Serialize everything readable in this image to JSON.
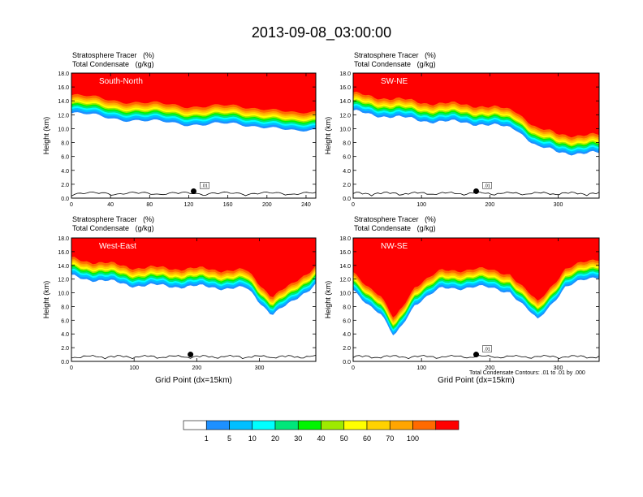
{
  "figure": {
    "title": "2013-09-08_03:00:00",
    "contour_note": "Total Condensate Contours: .01 to .01 by .000"
  },
  "colorbar": {
    "labels": [
      "1",
      "5",
      "10",
      "20",
      "30",
      "40",
      "50",
      "60",
      "70",
      "100"
    ],
    "colors": [
      "#ffffff",
      "#1e90ff",
      "#00bfff",
      "#00ffff",
      "#00e67a",
      "#00f500",
      "#9eea00",
      "#ffff00",
      "#ffd200",
      "#ffa500",
      "#ff6a00",
      "#ff0000"
    ]
  },
  "chart_data": [
    {
      "type": "heatmap",
      "panel": "South-North",
      "subtitle_left": "Stratosphere Tracer",
      "subtitle_units": "(%)",
      "subtitle_left2": "Total Condensate",
      "subtitle_units2": "(g/kg)",
      "ylabel": "Height (km)",
      "xlabel": "",
      "xlim": [
        0,
        250
      ],
      "ylim": [
        0,
        18
      ],
      "xticks": [
        0,
        40,
        80,
        120,
        160,
        200,
        240
      ],
      "yticks": [
        "0.0",
        "2.0",
        "4.0",
        "6.0",
        "8.0",
        "10.0",
        "12.0",
        "14.0",
        "16.0",
        "18.0"
      ],
      "tropopause_km": [
        [
          0,
          14.8
        ],
        [
          40,
          14.2
        ],
        [
          80,
          13.6
        ],
        [
          120,
          13.3
        ],
        [
          160,
          13.2
        ],
        [
          200,
          13.0
        ],
        [
          230,
          12.0
        ],
        [
          250,
          12.5
        ]
      ],
      "contour_label": ".01",
      "marker": [
        125,
        1.0
      ]
    },
    {
      "type": "heatmap",
      "panel": "SW-NE",
      "subtitle_left": "Stratosphere Tracer",
      "subtitle_units": "(%)",
      "subtitle_left2": "Total Condensate",
      "subtitle_units2": "(g/kg)",
      "ylabel": "Height (km)",
      "xlabel": "",
      "xlim": [
        0,
        360
      ],
      "ylim": [
        0,
        18
      ],
      "xticks": [
        0,
        100,
        200,
        300
      ],
      "yticks": [
        "0.0",
        "2.0",
        "4.0",
        "6.0",
        "8.0",
        "10.0",
        "12.0",
        "14.0",
        "16.0",
        "18.0"
      ],
      "tropopause_km": [
        [
          0,
          15.0
        ],
        [
          100,
          13.8
        ],
        [
          190,
          13.3
        ],
        [
          240,
          12.5
        ],
        [
          270,
          10.0
        ],
        [
          300,
          9.2
        ],
        [
          360,
          9.0
        ]
      ],
      "contour_label": ".01",
      "marker": [
        180,
        1.0
      ]
    },
    {
      "type": "heatmap",
      "panel": "West-East",
      "subtitle_left": "Stratosphere Tracer",
      "subtitle_units": "(%)",
      "subtitle_left2": "Total Condensate",
      "subtitle_units2": "(g/kg)",
      "ylabel": "Height (km)",
      "xlabel": "Grid Point (dx=15km)",
      "xlim": [
        0,
        390
      ],
      "ylim": [
        0,
        18
      ],
      "xticks": [
        0,
        100,
        200,
        300
      ],
      "yticks": [
        "0.0",
        "2.0",
        "4.0",
        "6.0",
        "8.0",
        "10.0",
        "12.0",
        "14.0",
        "16.0",
        "18.0"
      ],
      "tropopause_km": [
        [
          0,
          15.0
        ],
        [
          100,
          13.7
        ],
        [
          200,
          13.5
        ],
        [
          280,
          13.2
        ],
        [
          320,
          9.5
        ],
        [
          350,
          11.0
        ],
        [
          390,
          14.0
        ]
      ],
      "contour_label": "",
      "marker": [
        190,
        1.0
      ]
    },
    {
      "type": "heatmap",
      "panel": "NW-SE",
      "subtitle_left": "Stratosphere Tracer",
      "subtitle_units": "(%)",
      "subtitle_left2": "Total Condensate",
      "subtitle_units2": "(g/kg)",
      "ylabel": "Height (km)",
      "xlabel": "Grid Point (dx=15km)",
      "xlim": [
        0,
        360
      ],
      "ylim": [
        0,
        18
      ],
      "xticks": [
        0,
        100,
        200,
        300
      ],
      "yticks": [
        "0.0",
        "2.0",
        "4.0",
        "6.0",
        "8.0",
        "10.0",
        "12.0",
        "14.0",
        "16.0",
        "18.0"
      ],
      "tropopause_km": [
        [
          0,
          13.0
        ],
        [
          40,
          9.5
        ],
        [
          60,
          6.0
        ],
        [
          90,
          11.0
        ],
        [
          130,
          13.2
        ],
        [
          180,
          13.5
        ],
        [
          230,
          12.8
        ],
        [
          270,
          8.5
        ],
        [
          310,
          13.5
        ],
        [
          360,
          15.0
        ]
      ],
      "contour_label": ".01",
      "marker": [
        180,
        1.0
      ]
    }
  ]
}
